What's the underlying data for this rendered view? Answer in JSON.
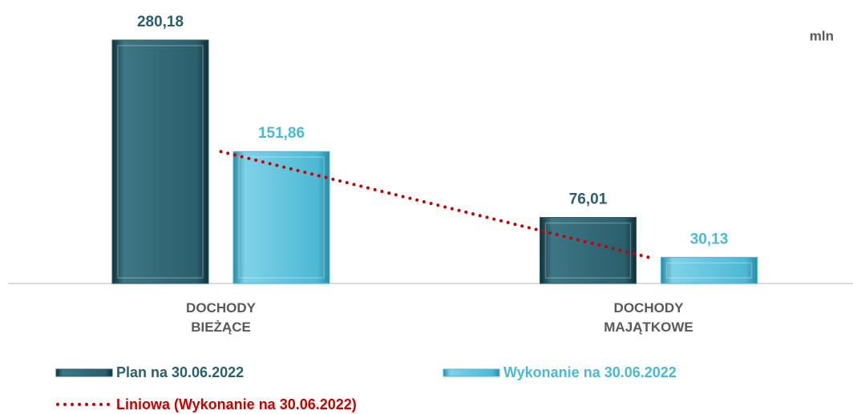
{
  "chart_data": {
    "type": "bar",
    "categories": [
      "DOCHODY BIEŻĄCE",
      "DOCHODY MAJĄTKOWE"
    ],
    "unit": "mln",
    "series": [
      {
        "name": "Plan na 30.06.2022",
        "color": "#2b5f6c",
        "values": [
          280.18,
          76.01
        ],
        "value_labels": [
          "280,18",
          "76,01"
        ]
      },
      {
        "name": "Wykonanie na 30.06.2022",
        "color": "#4db8d4",
        "values": [
          151.86,
          30.13
        ],
        "value_labels": [
          "151,86",
          "30,13"
        ]
      }
    ],
    "trendline": {
      "name": "Liniowa (Wykonanie na 30.06.2022)",
      "type": "linear",
      "series": 1,
      "color": "#c00000"
    },
    "ylim": [
      0,
      300
    ],
    "grid": false,
    "legend": "bottom"
  }
}
